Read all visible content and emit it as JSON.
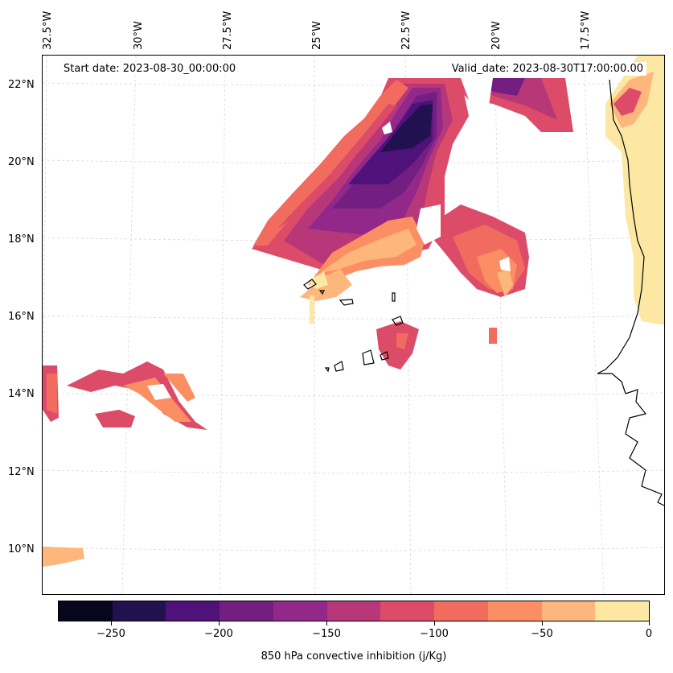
{
  "map": {
    "longitude_labels": [
      "32.5°W",
      "30°W",
      "27.5°W",
      "25°W",
      "22.5°W",
      "20°W",
      "17.5°W"
    ],
    "latitude_labels": [
      "22°N",
      "20°N",
      "18°N",
      "16°N",
      "14°N",
      "12°N",
      "10°N"
    ],
    "start_date": "Start date: 2023-08-30_00:00:00",
    "valid_date": "Valid_date: 2023-08-30T17:00:00.00"
  },
  "colorbar": {
    "label": "850 hPa convective inhibition (j/Kg)",
    "tick_labels": [
      "−250",
      "−200",
      "−150",
      "−100",
      "−50",
      "0"
    ],
    "levels": [
      -275,
      -250,
      -225,
      -200,
      -175,
      -150,
      -125,
      -100,
      -75,
      -50,
      -25,
      0
    ],
    "colors": [
      "#07061d",
      "#221150",
      "#4f127b",
      "#721f81",
      "#92298a",
      "#b73779",
      "#dc4c68",
      "#f16b5f",
      "#fc8e63",
      "#fdb67c",
      "#fce7a3"
    ]
  },
  "legend": {
    "coastline": "black line"
  }
}
